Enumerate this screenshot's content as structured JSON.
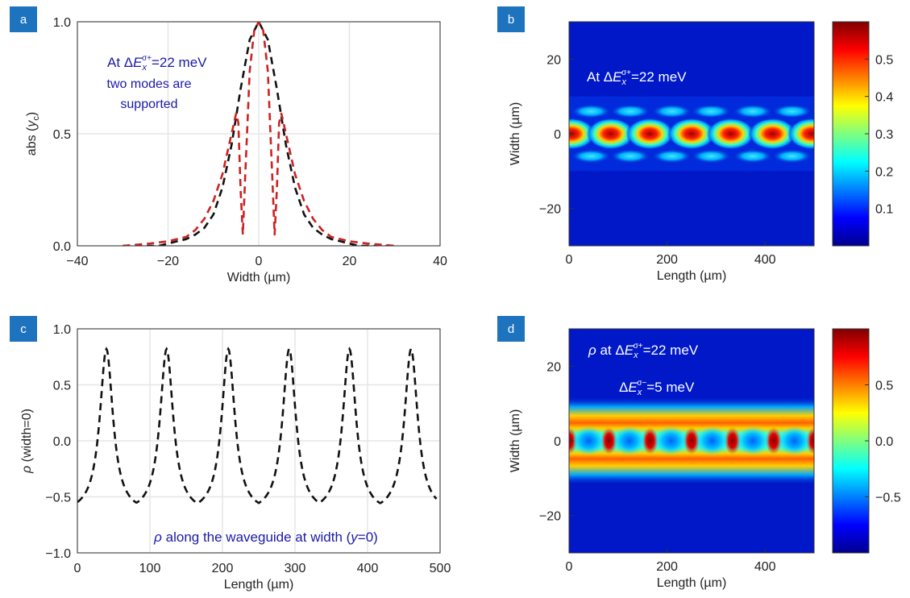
{
  "panels": {
    "a": {
      "badge": "a"
    },
    "b": {
      "badge": "b"
    },
    "c": {
      "badge": "c"
    },
    "d": {
      "badge": "d"
    }
  },
  "chart_data": [
    {
      "panel": "a",
      "type": "line",
      "xlabel": "Width (µm)",
      "ylabel": "abs (y_c)",
      "ylabel_parts": {
        "pre": "abs (",
        "var": "y",
        "sub": "c",
        "post": ")"
      },
      "xlim": [
        -40,
        40
      ],
      "ylim": [
        0,
        1
      ],
      "xticks": [
        -40,
        -20,
        0,
        20,
        40
      ],
      "xtick_labels": [
        "−40",
        "−20",
        "0",
        "20",
        "40"
      ],
      "yticks": [
        0,
        0.5,
        1
      ],
      "ytick_labels": [
        "0.0",
        "0.5",
        "1.0"
      ],
      "grid": true,
      "annotation": {
        "lines": [
          "At ΔE_x^σ+=22 meV",
          "two modes are",
          "supported"
        ],
        "parts": {
          "pre": "At Δ",
          "var": "E",
          "sub": "x",
          "sup": "σ+",
          "post": "=22 meV"
        },
        "color": "#1a1aa6"
      },
      "series": [
        {
          "style": "dashed",
          "color": "#111111",
          "x": [
            -30,
            -26,
            -22,
            -20,
            -18,
            -16,
            -14,
            -12,
            -10,
            -8,
            -6,
            -4,
            -2,
            0,
            2,
            4,
            6,
            8,
            10,
            12,
            14,
            16,
            18,
            20,
            22,
            26,
            30
          ],
          "y": [
            0,
            0,
            0,
            0.01,
            0.02,
            0.03,
            0.05,
            0.08,
            0.14,
            0.26,
            0.45,
            0.7,
            0.92,
            1.0,
            0.92,
            0.7,
            0.45,
            0.26,
            0.14,
            0.08,
            0.05,
            0.03,
            0.02,
            0.01,
            0,
            0,
            0
          ]
        },
        {
          "style": "dashed",
          "color": "#cc2222",
          "x": [
            -30,
            -24,
            -20,
            -16,
            -14,
            -12,
            -10,
            -8,
            -6,
            -5,
            -4.5,
            -4,
            -3.5,
            -3,
            -2,
            -1,
            0,
            1,
            2,
            3,
            3.5,
            4,
            4.5,
            5,
            6,
            8,
            10,
            12,
            14,
            16,
            20,
            24,
            30
          ],
          "y": [
            0,
            0.01,
            0.02,
            0.04,
            0.07,
            0.12,
            0.2,
            0.32,
            0.5,
            0.59,
            0.55,
            0.25,
            0.05,
            0.3,
            0.78,
            0.96,
            1.0,
            0.96,
            0.78,
            0.3,
            0.05,
            0.25,
            0.55,
            0.59,
            0.5,
            0.32,
            0.2,
            0.12,
            0.07,
            0.04,
            0.02,
            0.01,
            0
          ]
        }
      ]
    },
    {
      "panel": "b",
      "type": "heatmap",
      "xlabel": "Length (µm)",
      "ylabel": "Width (µm)",
      "xlim": [
        0,
        500
      ],
      "ylim": [
        -30,
        30
      ],
      "xticks": [
        0,
        200,
        400
      ],
      "xtick_labels": [
        "0",
        "200",
        "400"
      ],
      "yticks": [
        -20,
        0,
        20
      ],
      "ytick_labels": [
        "−20",
        "0",
        "20"
      ],
      "annotation": {
        "text": "At ΔE_x^σ+=22 meV",
        "parts": {
          "pre": "At Δ",
          "var": "E",
          "sub": "x",
          "sup": "σ+",
          "post": "=22 meV"
        },
        "color": "#ffffff"
      },
      "colormap": "jet",
      "clim": [
        0,
        0.6
      ],
      "colorbar_ticks": [
        0.1,
        0.2,
        0.3,
        0.4,
        0.5
      ],
      "colorbar_labels": [
        "0.1",
        "0.2",
        "0.3",
        "0.4",
        "0.5"
      ],
      "peak_positions_length": [
        5,
        85,
        165,
        250,
        330,
        415,
        495
      ],
      "side_lobe_positions_length": [
        45,
        125,
        210,
        290,
        375,
        455
      ],
      "peak_value": 0.58,
      "side_lobe_width_offset": 6,
      "side_lobe_value": 0.22
    },
    {
      "panel": "c",
      "type": "line",
      "xlabel": "Length (µm)",
      "ylabel": "ρ (width=0)",
      "ylabel_parts": {
        "var": "ρ",
        "post": " (width=0)"
      },
      "xlim": [
        0,
        500
      ],
      "ylim": [
        -1,
        1
      ],
      "xticks": [
        0,
        100,
        200,
        300,
        400,
        500
      ],
      "xtick_labels": [
        "0",
        "100",
        "200",
        "300",
        "400",
        "500"
      ],
      "yticks": [
        -1,
        -0.5,
        0,
        0.5,
        1
      ],
      "ytick_labels": [
        "−1.0",
        "−0.5",
        "0.0",
        "0.5",
        "1.0"
      ],
      "grid": true,
      "annotation": {
        "text": "ρ along the waveguide at width (y=0)",
        "parts": {
          "var1": "ρ",
          "mid": " along the waveguide at width (",
          "var2": "y",
          "post": "=0)"
        },
        "color": "#1a1aa6"
      },
      "series": [
        {
          "style": "dashed",
          "color": "#111111",
          "peaks": [
            40,
            123,
            208,
            292,
            375,
            460
          ],
          "peak_value": 0.82,
          "trough_value": -0.65
        }
      ]
    },
    {
      "panel": "d",
      "type": "heatmap",
      "xlabel": "Length (µm)",
      "ylabel": "Width (µm)",
      "xlim": [
        0,
        500
      ],
      "ylim": [
        -30,
        30
      ],
      "xticks": [
        0,
        200,
        400
      ],
      "xtick_labels": [
        "0",
        "200",
        "400"
      ],
      "yticks": [
        -20,
        0,
        20
      ],
      "ytick_labels": [
        "−20",
        "0",
        "20"
      ],
      "annotation": {
        "line1": "ρ at ΔE_x^σ+=22 meV",
        "line2": "ΔE_x^σ−=5 meV",
        "parts1": {
          "var0": "ρ",
          "pre": " at Δ",
          "var": "E",
          "sub": "x",
          "sup": "σ+",
          "post": "=22 meV"
        },
        "parts2": {
          "pre": "Δ",
          "var": "E",
          "sub": "x",
          "sup": "σ−",
          "post": "=5 meV"
        },
        "color": "#ffffff"
      },
      "colormap": "jet",
      "clim": [
        -1,
        1
      ],
      "colorbar_ticks": [
        -0.5,
        0,
        0.5
      ],
      "colorbar_labels": [
        "−0.5",
        "0.0",
        "0.5"
      ],
      "peak_positions_length": [
        40,
        123,
        208,
        292,
        375,
        460
      ]
    }
  ]
}
